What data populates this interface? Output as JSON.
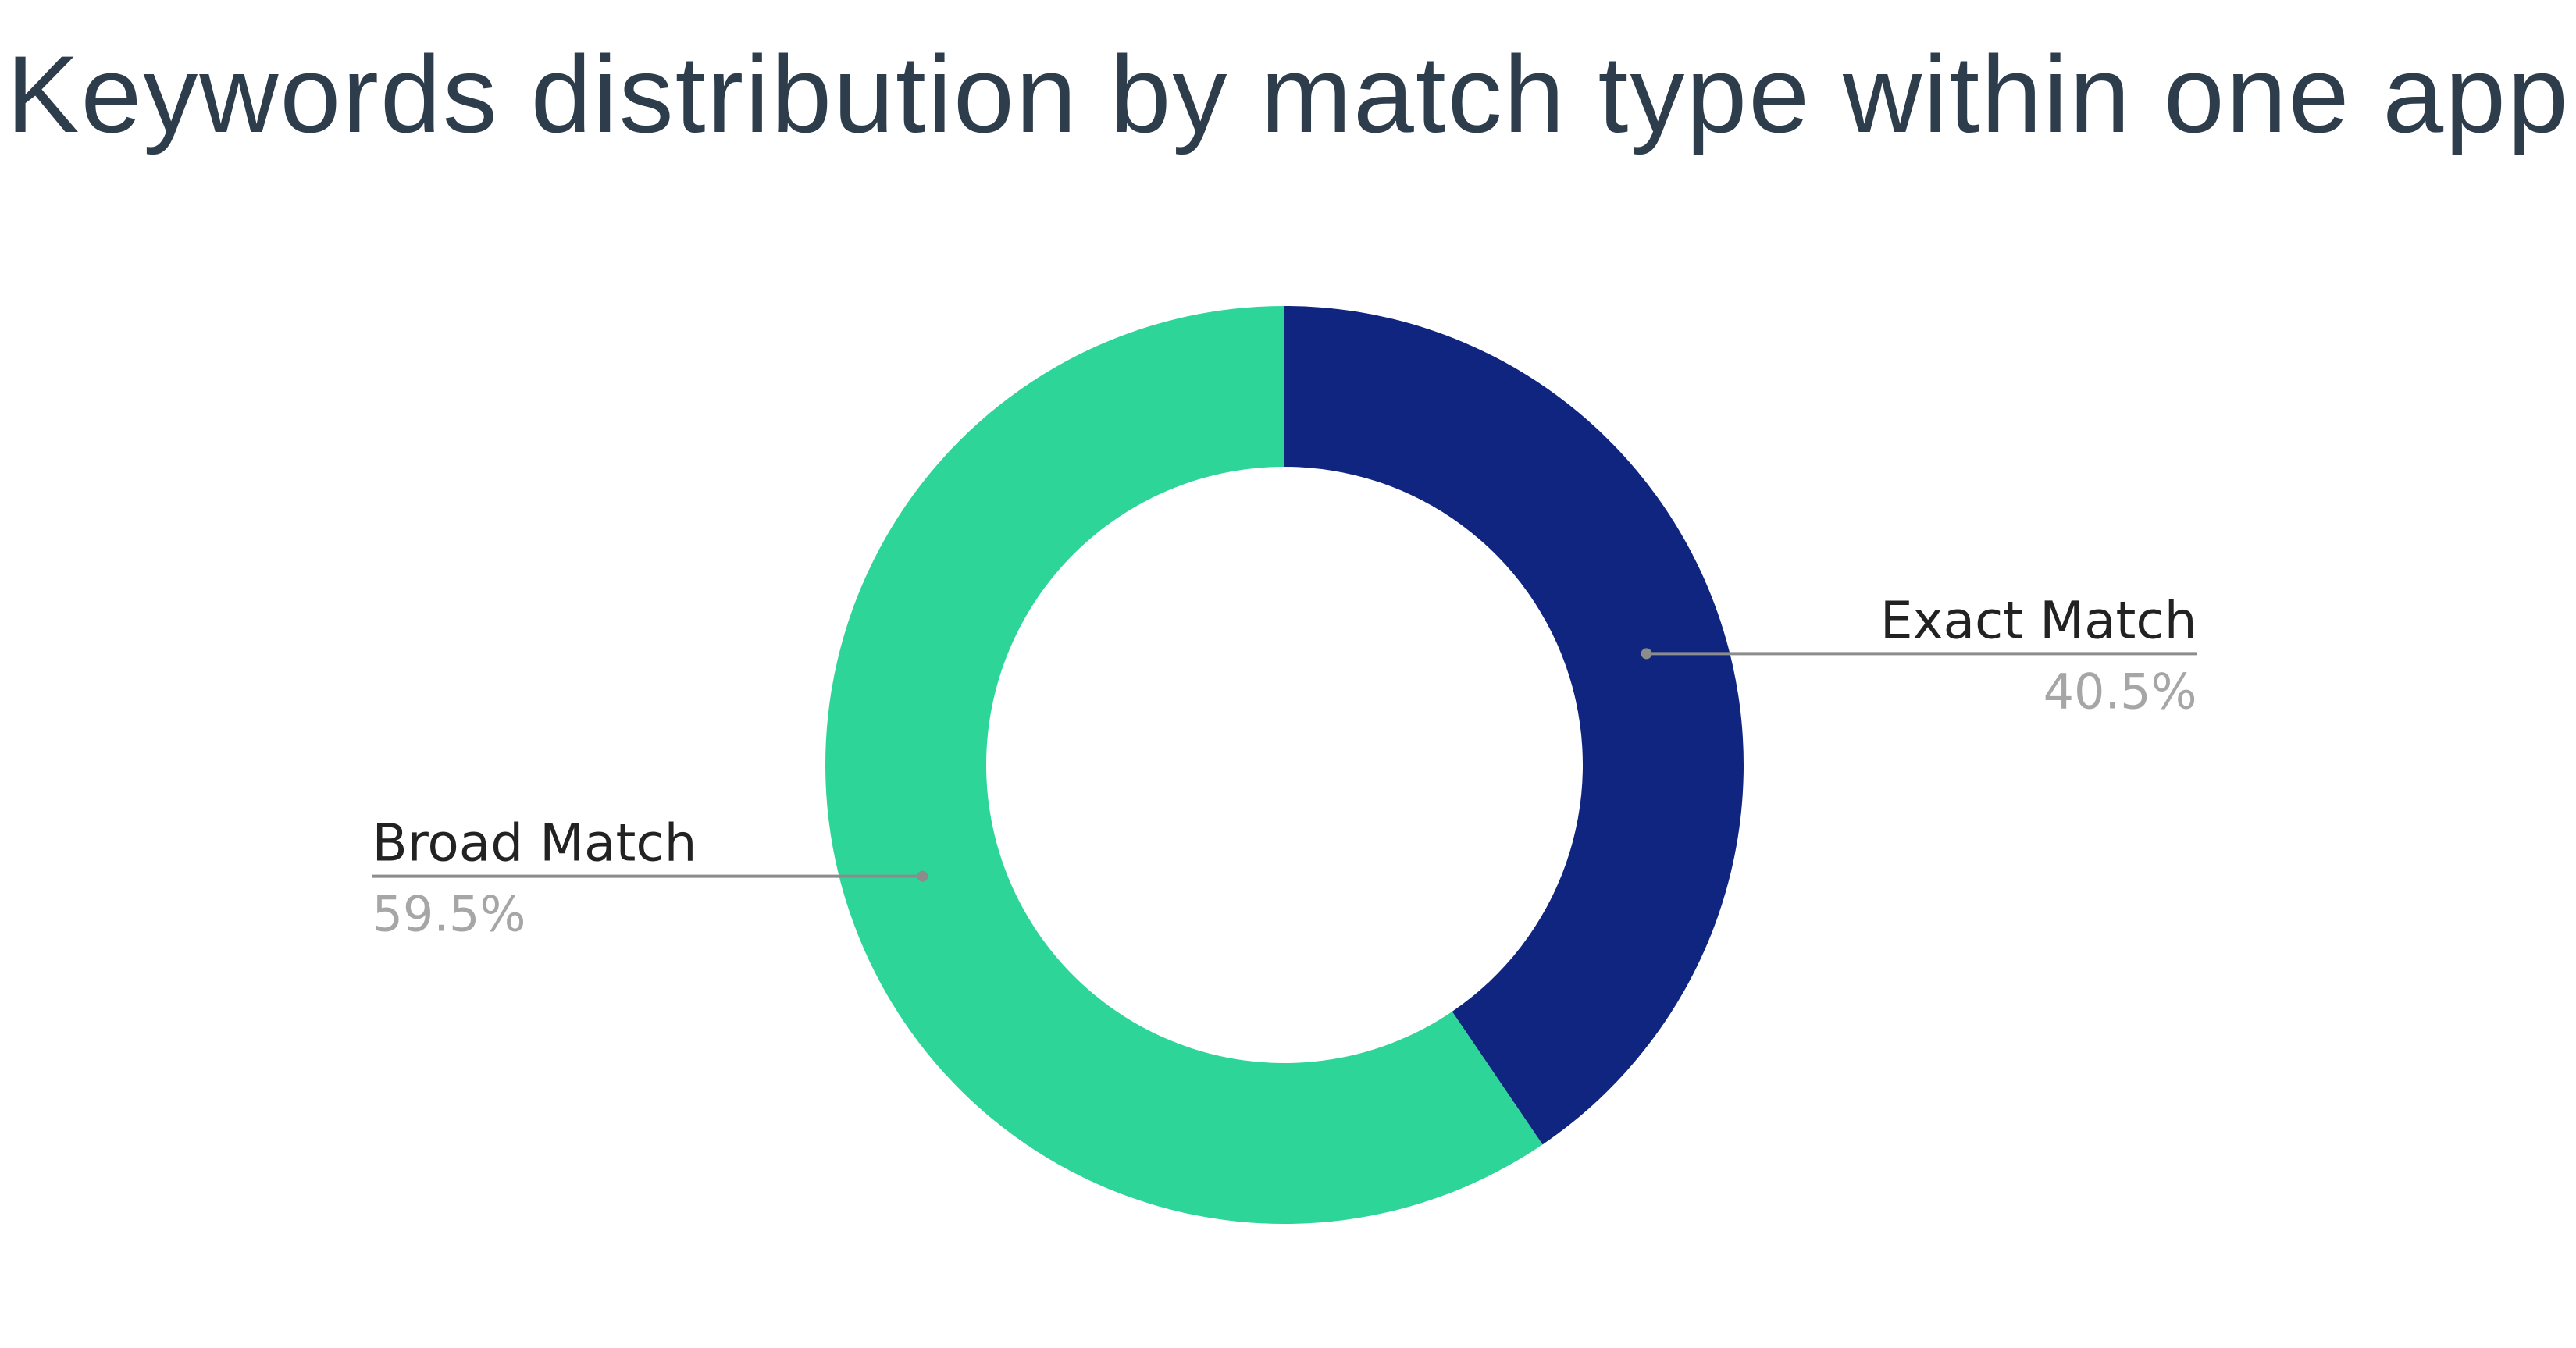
{
  "chart_data": {
    "type": "pie",
    "style": "donut",
    "title": "Keywords distribution by match type within one app",
    "start_angle_deg": 0,
    "direction": "clockwise",
    "slices": [
      {
        "label": "Exact Match",
        "value": 40.5,
        "value_label": "40.5%",
        "color": "#0f2580"
      },
      {
        "label": "Broad Match",
        "value": 59.5,
        "value_label": "59.5%",
        "color": "#2ed598"
      }
    ],
    "leader_color": "#8c8c8c",
    "value_label_color": "#a6a6a6",
    "legend": "none"
  }
}
